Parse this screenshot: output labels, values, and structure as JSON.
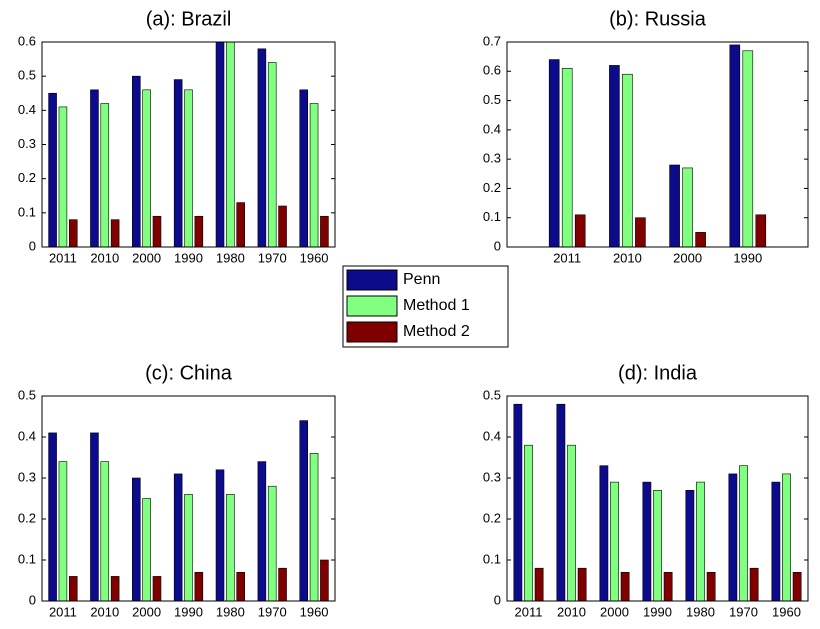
{
  "chart_data": [
    {
      "type": "bar",
      "title": "(a): Brazil",
      "categories": [
        "2011",
        "2010",
        "2000",
        "1990",
        "1980",
        "1970",
        "1960"
      ],
      "series": [
        {
          "name": "Penn",
          "color": "#0b0b8c",
          "values": [
            0.45,
            0.46,
            0.5,
            0.49,
            0.61,
            0.58,
            0.46
          ]
        },
        {
          "name": "Method 1",
          "color": "#80ff80",
          "values": [
            0.41,
            0.42,
            0.46,
            0.46,
            0.61,
            0.54,
            0.42
          ]
        },
        {
          "name": "Method 2",
          "color": "#800000",
          "values": [
            0.08,
            0.08,
            0.09,
            0.09,
            0.13,
            0.12,
            0.09
          ]
        }
      ],
      "ylim": [
        0,
        0.6
      ],
      "yticks": [
        0,
        0.1,
        0.2,
        0.3,
        0.4,
        0.5,
        0.6
      ]
    },
    {
      "type": "bar",
      "title": "(b): Russia",
      "categories": [
        "2011",
        "2010",
        "2000",
        "1990"
      ],
      "series": [
        {
          "name": "Penn",
          "color": "#0b0b8c",
          "values": [
            0.64,
            0.62,
            0.28,
            0.69
          ]
        },
        {
          "name": "Method 1",
          "color": "#80ff80",
          "values": [
            0.61,
            0.59,
            0.27,
            0.67
          ]
        },
        {
          "name": "Method 2",
          "color": "#800000",
          "values": [
            0.11,
            0.1,
            0.05,
            0.11
          ]
        }
      ],
      "ylim": [
        0,
        0.7
      ],
      "yticks": [
        0,
        0.1,
        0.2,
        0.3,
        0.4,
        0.5,
        0.6,
        0.7
      ]
    },
    {
      "type": "bar",
      "title": "(c): China",
      "categories": [
        "2011",
        "2010",
        "2000",
        "1990",
        "1980",
        "1970",
        "1960"
      ],
      "series": [
        {
          "name": "Penn",
          "color": "#0b0b8c",
          "values": [
            0.41,
            0.41,
            0.3,
            0.31,
            0.32,
            0.34,
            0.44
          ]
        },
        {
          "name": "Method 1",
          "color": "#80ff80",
          "values": [
            0.34,
            0.34,
            0.25,
            0.26,
            0.26,
            0.28,
            0.36
          ]
        },
        {
          "name": "Method 2",
          "color": "#800000",
          "values": [
            0.06,
            0.06,
            0.06,
            0.07,
            0.07,
            0.08,
            0.1
          ]
        }
      ],
      "ylim": [
        0,
        0.5
      ],
      "yticks": [
        0,
        0.1,
        0.2,
        0.3,
        0.4,
        0.5
      ]
    },
    {
      "type": "bar",
      "title": "(d): India",
      "categories": [
        "2011",
        "2010",
        "2000",
        "1990",
        "1980",
        "1970",
        "1960"
      ],
      "series": [
        {
          "name": "Penn",
          "color": "#0b0b8c",
          "values": [
            0.48,
            0.48,
            0.33,
            0.29,
            0.27,
            0.31,
            0.29
          ]
        },
        {
          "name": "Method 1",
          "color": "#80ff80",
          "values": [
            0.38,
            0.38,
            0.29,
            0.27,
            0.29,
            0.33,
            0.31
          ]
        },
        {
          "name": "Method 2",
          "color": "#800000",
          "values": [
            0.08,
            0.08,
            0.07,
            0.07,
            0.07,
            0.08,
            0.07
          ]
        }
      ],
      "ylim": [
        0,
        0.5
      ],
      "yticks": [
        0,
        0.1,
        0.2,
        0.3,
        0.4,
        0.5
      ]
    }
  ]
}
